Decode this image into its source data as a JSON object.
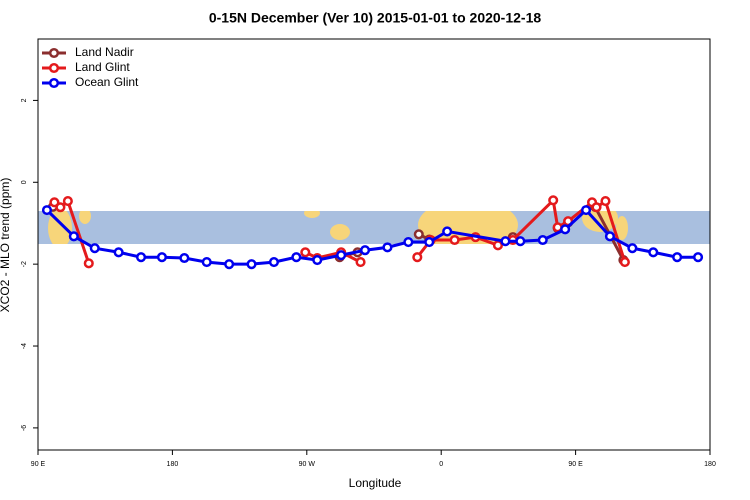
{
  "chart_data": {
    "type": "line",
    "title": "0-15N December (Ver 10)   2015-01-01 to 2020-12-18",
    "xlabel": "Longitude",
    "ylabel": "XCO2 - MLO trend (ppm)",
    "xlim": [
      90,
      540
    ],
    "ylim": [
      -6.54,
      3.5
    ],
    "xticks": [
      {
        "value": 90,
        "label": "90 E"
      },
      180,
      {
        "value": 270,
        "label": "90 W"
      },
      {
        "value": 360,
        "label": "0"
      },
      {
        "value": 450,
        "label": "90 E"
      },
      {
        "value": 540,
        "label": "180"
      }
    ],
    "yticks": [
      -6,
      -4,
      -2,
      0,
      2
    ],
    "legend": "top-left",
    "series": [
      {
        "name": "Land Nadir",
        "color": "#8b2e2e",
        "x": [
          100,
          null,
          292,
          304,
          null,
          345,
          352,
          null,
          408,
          null,
          438,
          445,
          null,
          463,
          482
        ],
        "values": [
          -0.6,
          null,
          -1.83,
          -1.71,
          null,
          -1.27,
          -1.4,
          null,
          -1.34,
          null,
          -1.12,
          -0.98,
          null,
          -0.6,
          -1.9
        ]
      },
      {
        "name": "Land Glint",
        "color": "#e41a1c",
        "x": [
          101,
          105,
          110,
          124,
          null,
          269,
          277,
          293,
          306,
          null,
          344,
          353,
          369,
          383,
          398,
          408,
          435,
          438,
          445,
          461,
          464,
          470,
          483
        ],
        "values": [
          -0.49,
          -0.61,
          -0.46,
          -1.98,
          null,
          -1.71,
          -1.85,
          -1.71,
          -1.95,
          null,
          -1.83,
          -1.41,
          -1.41,
          -1.34,
          -1.54,
          -1.41,
          -0.44,
          -1.1,
          -0.95,
          -0.49,
          -0.61,
          -0.46,
          -1.95
        ]
      },
      {
        "name": "Ocean Glint",
        "color": "#0000ee",
        "x": [
          96,
          114,
          128,
          144,
          159,
          173,
          188,
          203,
          218,
          233,
          248,
          263,
          277,
          293,
          309,
          324,
          338,
          352,
          364,
          403,
          413,
          428,
          443,
          457,
          473,
          488,
          502,
          518,
          532
        ],
        "values": [
          -0.68,
          -1.32,
          -1.61,
          -1.71,
          -1.83,
          -1.83,
          -1.85,
          -1.95,
          -2.0,
          -2.0,
          -1.95,
          -1.83,
          -1.9,
          -1.78,
          -1.66,
          -1.59,
          -1.46,
          -1.46,
          -1.2,
          -1.44,
          -1.44,
          -1.41,
          -1.15,
          -0.68,
          -1.32,
          -1.61,
          -1.71,
          -1.83,
          -1.83
        ]
      }
    ]
  }
}
